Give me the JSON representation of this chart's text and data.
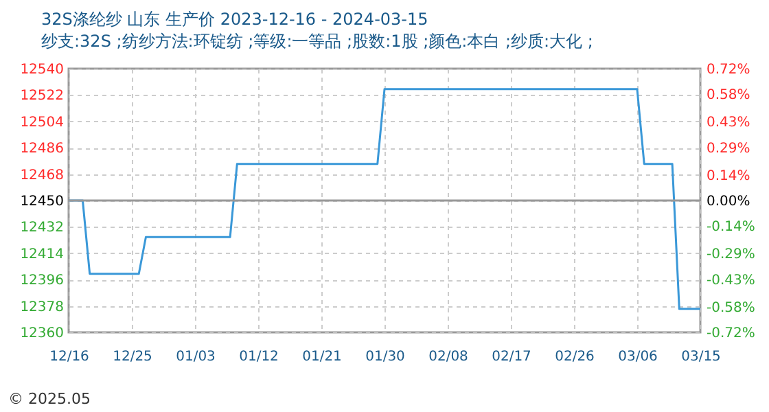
{
  "chart_data": {
    "type": "line",
    "title": "32S涤纶纱 山东 生产价 2023-12-16 - 2024-03-15",
    "subtitle": "纱支:32S ;纺纱方法:环锭纺 ;等级:一等品 ;股数:1股 ;颜色:本白 ;纱质:大化 ;",
    "x": [
      "2023-12-16",
      "2023-12-18",
      "2023-12-19",
      "2023-12-26",
      "2023-12-27",
      "2024-01-08",
      "2024-01-09",
      "2024-01-29",
      "2024-01-30",
      "2024-03-06",
      "2024-03-07",
      "2024-03-11",
      "2024-03-12",
      "2024-03-15"
    ],
    "series": [
      {
        "color": "#3a98d8",
        "values": [
          12450,
          12450,
          12400,
          12400,
          12425,
          12425,
          12475,
          12475,
          12526,
          12526,
          12475,
          12475,
          12376,
          12376
        ]
      }
    ],
    "xlim": [
      "2023-12-16",
      "2024-03-15"
    ],
    "xticks": [
      {
        "value": "2023-12-16",
        "label": "12/16"
      },
      {
        "value": "2023-12-25",
        "label": "12/25"
      },
      {
        "value": "2024-01-03",
        "label": "01/03"
      },
      {
        "value": "2024-01-12",
        "label": "01/12"
      },
      {
        "value": "2024-01-21",
        "label": "01/21"
      },
      {
        "value": "2024-01-30",
        "label": "01/30"
      },
      {
        "value": "2024-02-08",
        "label": "02/08"
      },
      {
        "value": "2024-02-17",
        "label": "02/17"
      },
      {
        "value": "2024-02-26",
        "label": "02/26"
      },
      {
        "value": "2024-03-06",
        "label": "03/06"
      },
      {
        "value": "2024-03-15",
        "label": "03/15"
      }
    ],
    "ylim": [
      12360,
      12540
    ],
    "yticks": [
      12360,
      12378,
      12396,
      12414,
      12432,
      12450,
      12468,
      12486,
      12504,
      12522,
      12540
    ],
    "y2lim": [
      -0.72,
      0.72
    ],
    "y2ticks": [
      {
        "value": -0.72,
        "label": "-0.72%"
      },
      {
        "value": -0.58,
        "label": "-0.58%"
      },
      {
        "value": -0.43,
        "label": "-0.43%"
      },
      {
        "value": -0.29,
        "label": "-0.29%"
      },
      {
        "value": -0.14,
        "label": "-0.14%"
      },
      {
        "value": 0,
        "label": "0.00%"
      },
      {
        "value": 0.14,
        "label": "0.14%"
      },
      {
        "value": 0.29,
        "label": "0.29%"
      },
      {
        "value": 0.43,
        "label": "0.43%"
      },
      {
        "value": 0.58,
        "label": "0.58%"
      },
      {
        "value": 0.72,
        "label": "0.72%"
      }
    ],
    "ref_lines": [
      {
        "axis": "y",
        "value": 12450,
        "color": "#999999"
      }
    ],
    "grid": true,
    "line_style": "solid",
    "marker": "none",
    "annotations": [
      "© 2025.05"
    ]
  }
}
